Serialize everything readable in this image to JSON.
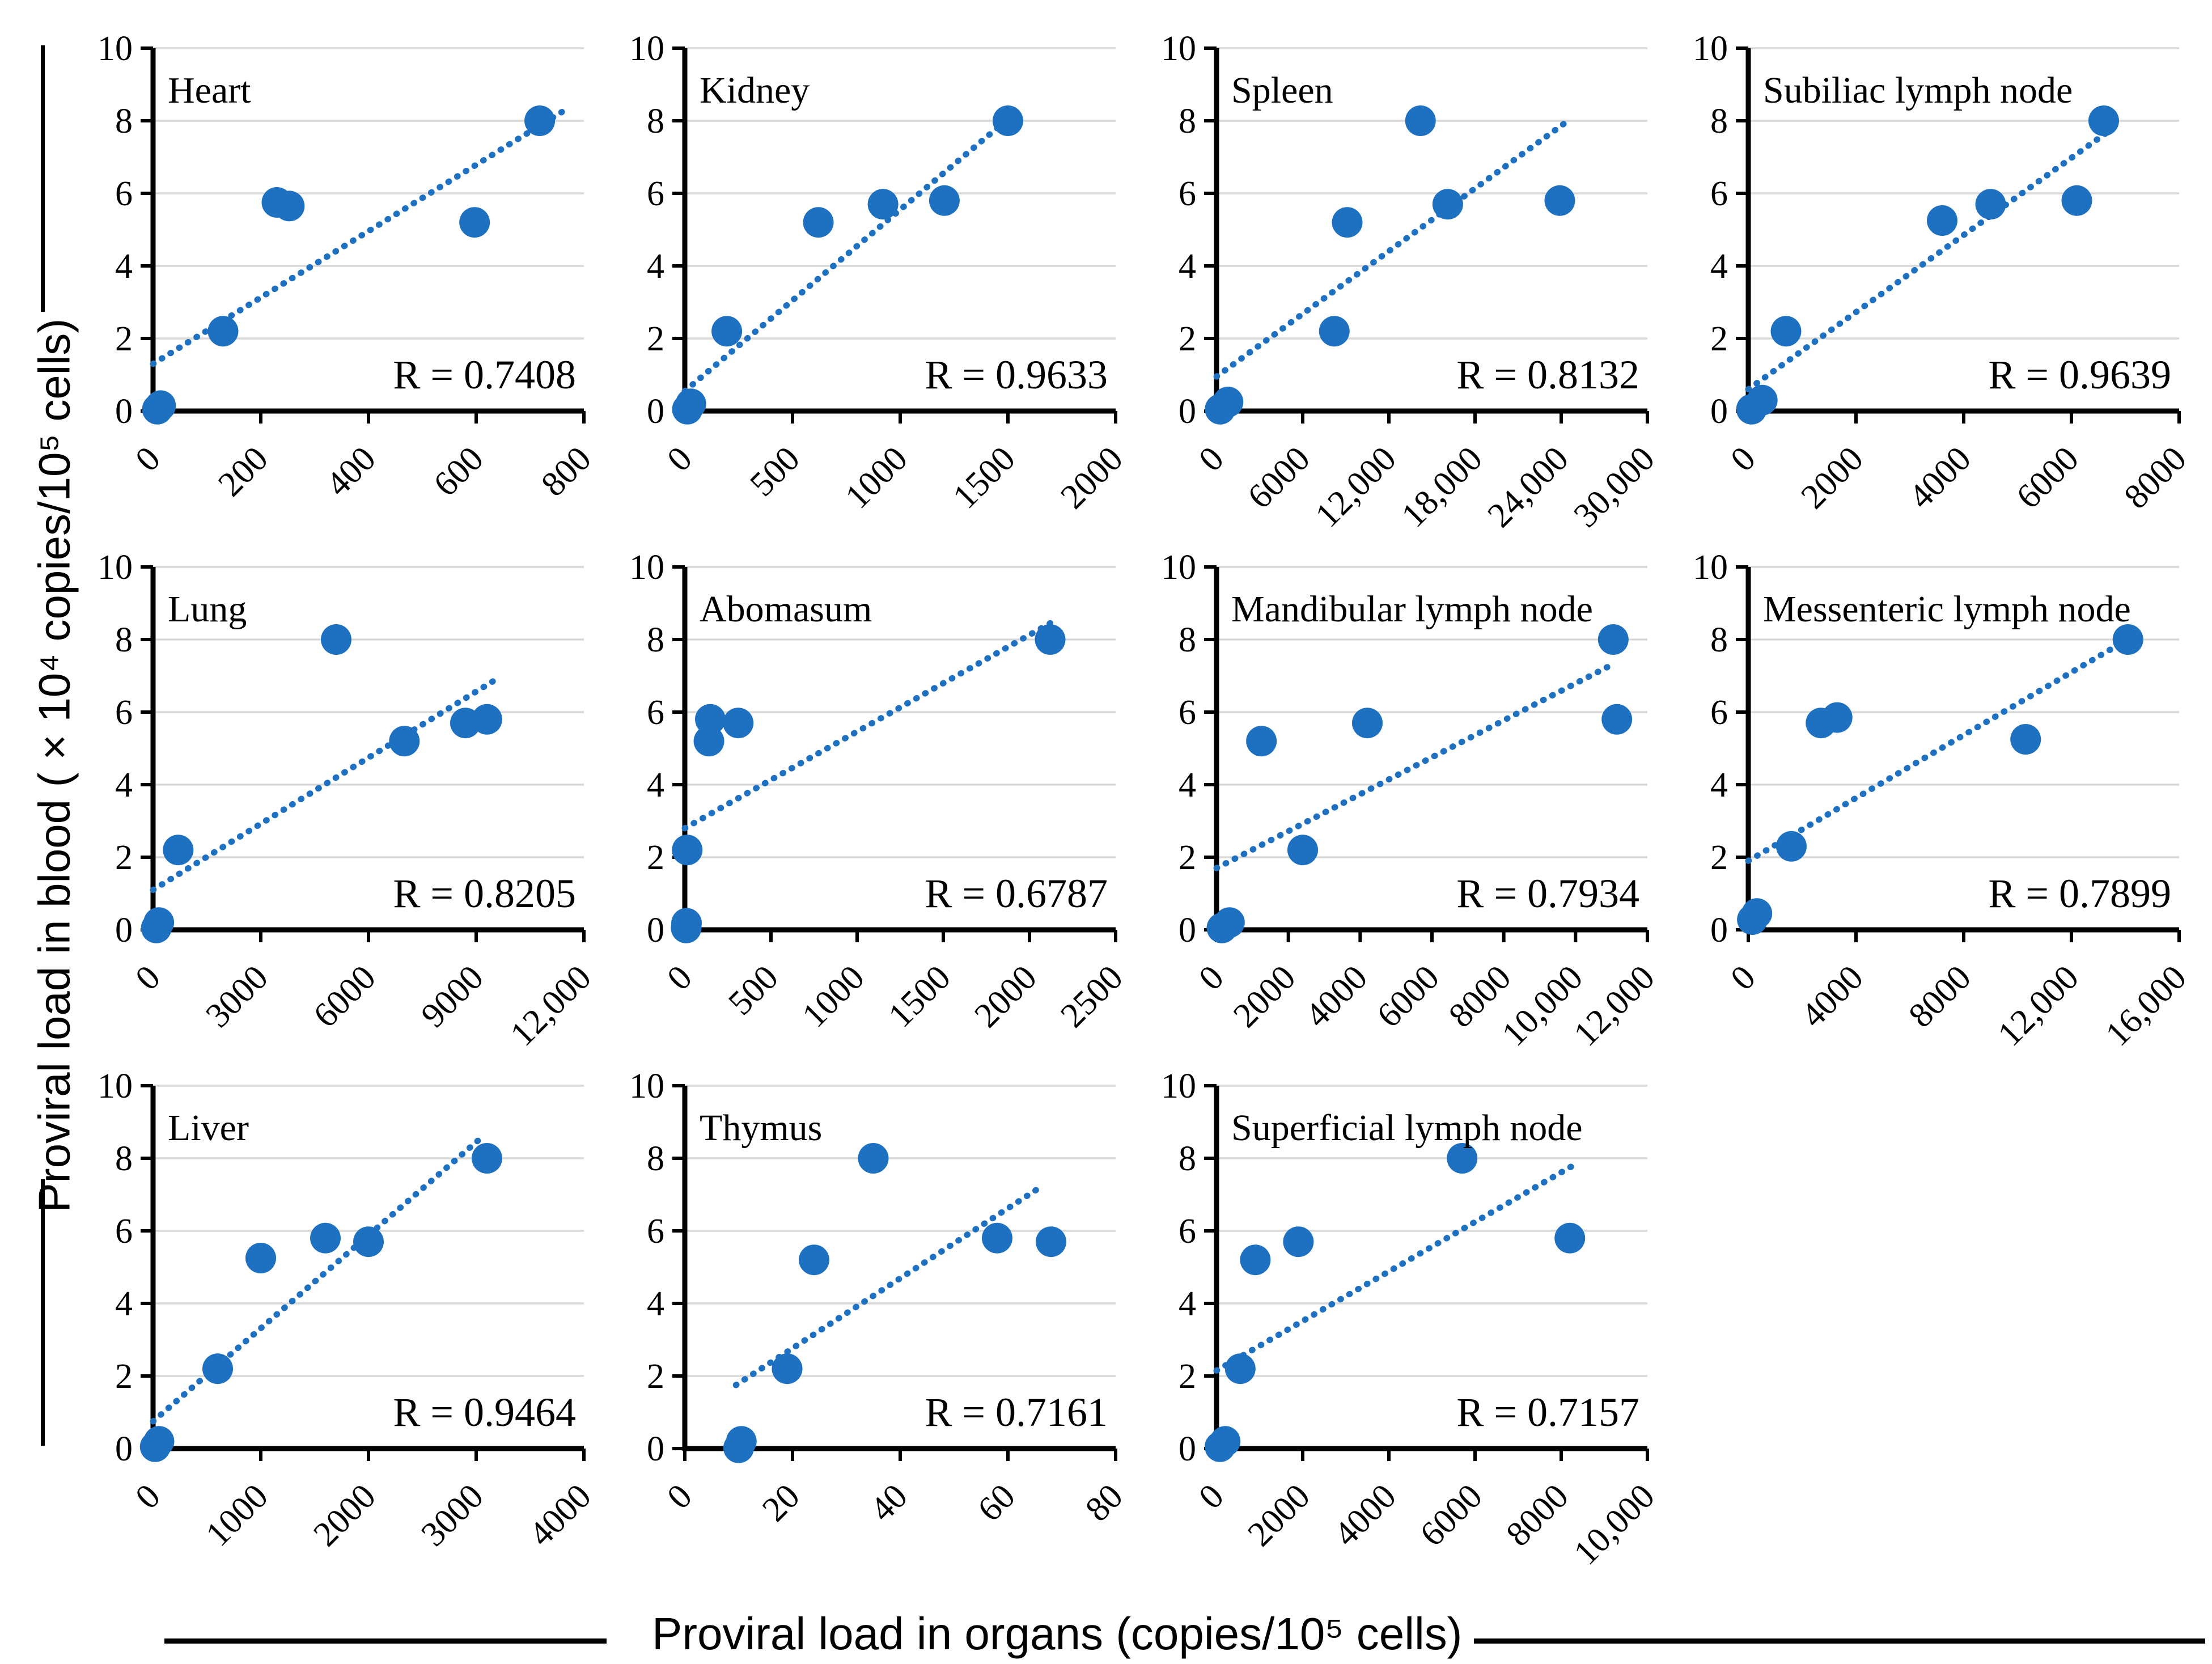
{
  "figure": {
    "y_axis_title": "Proviral load in blood ( × 10⁴ copies/10⁵ cells)",
    "x_axis_title": "Proviral load in organs (copies/10⁵ cells)",
    "point_color": "#1E70C1",
    "grid_color": "#D9D9D9",
    "axis_color": "#000000",
    "y_max": 10,
    "y_ticks": [
      0,
      2,
      4,
      6,
      8,
      10
    ],
    "grid_on": true,
    "legend_position": "none"
  },
  "chart_data": [
    {
      "type": "scatter",
      "title": "Heart",
      "r": 0.7408,
      "xlabel": "",
      "ylabel": "",
      "ylim": [
        0,
        10
      ],
      "x_max": 800,
      "x_tick_values": [
        0,
        200,
        400,
        600,
        800
      ],
      "x_tick_labels": [
        "0",
        "200",
        "400",
        "600",
        "800"
      ],
      "points": [
        [
          8,
          0.05
        ],
        [
          14,
          0.15
        ],
        [
          130,
          2.2
        ],
        [
          230,
          5.75
        ],
        [
          253,
          5.65
        ],
        [
          597,
          5.2
        ],
        [
          718,
          8.0
        ]
      ],
      "trend": [
        0,
        1.3,
        760,
        8.25
      ]
    },
    {
      "type": "scatter",
      "title": "Kidney",
      "r": 0.9633,
      "xlabel": "",
      "ylabel": "",
      "ylim": [
        0,
        10
      ],
      "x_max": 2000,
      "x_tick_values": [
        0,
        500,
        1000,
        1500,
        2000
      ],
      "x_tick_labels": [
        "0",
        "500",
        "1000",
        "1500",
        "2000"
      ],
      "points": [
        [
          12,
          0.05
        ],
        [
          28,
          0.2
        ],
        [
          195,
          2.2
        ],
        [
          620,
          5.2
        ],
        [
          920,
          5.7
        ],
        [
          1205,
          5.8
        ],
        [
          1500,
          8.0
        ]
      ],
      "trend": [
        0,
        0.55,
        1530,
        8.2
      ]
    },
    {
      "type": "scatter",
      "title": "Spleen",
      "r": 0.8132,
      "xlabel": "",
      "ylabel": "",
      "ylim": [
        0,
        10
      ],
      "x_max": 30000,
      "x_tick_values": [
        0,
        6000,
        12000,
        18000,
        24000,
        30000
      ],
      "x_tick_labels": [
        "0",
        "6000",
        "12,000",
        "18,000",
        "24,000",
        "30,000"
      ],
      "points": [
        [
          250,
          0.05
        ],
        [
          800,
          0.25
        ],
        [
          8200,
          2.2
        ],
        [
          9100,
          5.2
        ],
        [
          14200,
          8.0
        ],
        [
          16100,
          5.7
        ],
        [
          23900,
          5.8
        ]
      ],
      "trend": [
        0,
        0.95,
        24300,
        7.95
      ]
    },
    {
      "type": "scatter",
      "title": "Subiliac lymph node",
      "r": 0.9639,
      "xlabel": "",
      "ylabel": "",
      "ylim": [
        0,
        10
      ],
      "x_max": 8000,
      "x_tick_values": [
        0,
        2000,
        4000,
        6000,
        8000
      ],
      "x_tick_labels": [
        "0",
        "2000",
        "4000",
        "6000",
        "8000"
      ],
      "points": [
        [
          60,
          0.05
        ],
        [
          260,
          0.3
        ],
        [
          700,
          2.2
        ],
        [
          3600,
          5.25
        ],
        [
          4500,
          5.7
        ],
        [
          6100,
          5.8
        ],
        [
          6600,
          8.0
        ]
      ],
      "trend": [
        0,
        0.6,
        6680,
        7.7
      ]
    },
    {
      "type": "scatter",
      "title": "Lung",
      "r": 0.8205,
      "xlabel": "",
      "ylabel": "",
      "ylim": [
        0,
        10
      ],
      "x_max": 12000,
      "x_tick_values": [
        0,
        3000,
        6000,
        9000,
        12000
      ],
      "x_tick_labels": [
        "0",
        "3000",
        "6000",
        "9000",
        "12,000"
      ],
      "points": [
        [
          90,
          0.05
        ],
        [
          160,
          0.2
        ],
        [
          700,
          2.2
        ],
        [
          5100,
          8.0
        ],
        [
          7000,
          5.2
        ],
        [
          8700,
          5.7
        ],
        [
          9300,
          5.8
        ]
      ],
      "trend": [
        0,
        1.1,
        9550,
        6.9
      ]
    },
    {
      "type": "scatter",
      "title": "Abomasum",
      "r": 0.6787,
      "xlabel": "",
      "ylabel": "",
      "ylim": [
        0,
        10
      ],
      "x_max": 2500,
      "x_tick_values": [
        0,
        500,
        1000,
        1500,
        2000,
        2500
      ],
      "x_tick_labels": [
        "0",
        "500",
        "1000",
        "1500",
        "2000",
        "2500"
      ],
      "points": [
        [
          8,
          0.05
        ],
        [
          10,
          0.18
        ],
        [
          14,
          2.2
        ],
        [
          140,
          5.2
        ],
        [
          148,
          5.8
        ],
        [
          310,
          5.7
        ],
        [
          2120,
          8.0
        ]
      ],
      "trend": [
        0,
        2.8,
        2140,
        8.5
      ]
    },
    {
      "type": "scatter",
      "title": "Mandibular lymph node",
      "r": 0.7934,
      "xlabel": "",
      "ylabel": "",
      "ylim": [
        0,
        10
      ],
      "x_max": 12000,
      "x_tick_values": [
        0,
        2000,
        4000,
        6000,
        8000,
        10000,
        12000
      ],
      "x_tick_labels": [
        "0",
        "2000",
        "4000",
        "6000",
        "8000",
        "10,000",
        "12,000"
      ],
      "points": [
        [
          150,
          0.05
        ],
        [
          360,
          0.2
        ],
        [
          1250,
          5.2
        ],
        [
          2400,
          2.2
        ],
        [
          4200,
          5.7
        ],
        [
          11050,
          8.0
        ],
        [
          11150,
          5.8
        ]
      ],
      "trend": [
        0,
        1.7,
        11100,
        7.35
      ]
    },
    {
      "type": "scatter",
      "title": "Messenteric lymph node",
      "r": 0.7899,
      "xlabel": "",
      "ylabel": "",
      "ylim": [
        0,
        10
      ],
      "x_max": 16000,
      "x_tick_values": [
        0,
        4000,
        8000,
        12000,
        16000
      ],
      "x_tick_labels": [
        "0",
        "4000",
        "8000",
        "12,000",
        "16,000"
      ],
      "points": [
        [
          150,
          0.28
        ],
        [
          320,
          0.45
        ],
        [
          1600,
          2.3
        ],
        [
          2700,
          5.7
        ],
        [
          3300,
          5.85
        ],
        [
          10300,
          5.25
        ],
        [
          14100,
          8.0
        ]
      ],
      "trend": [
        0,
        1.9,
        14200,
        8.05
      ]
    },
    {
      "type": "scatter",
      "title": "Liver",
      "r": 0.9464,
      "xlabel": "",
      "ylabel": "",
      "ylim": [
        0,
        10
      ],
      "x_max": 4000,
      "x_tick_values": [
        0,
        1000,
        2000,
        3000,
        4000
      ],
      "x_tick_labels": [
        "0",
        "1000",
        "2000",
        "3000",
        "4000"
      ],
      "points": [
        [
          20,
          0.05
        ],
        [
          55,
          0.2
        ],
        [
          600,
          2.2
        ],
        [
          1000,
          5.25
        ],
        [
          1600,
          5.8
        ],
        [
          2000,
          5.7
        ],
        [
          3100,
          8.0
        ]
      ],
      "trend": [
        0,
        0.75,
        3080,
        8.65
      ]
    },
    {
      "type": "scatter",
      "title": "Thymus",
      "r": 0.7161,
      "xlabel": "",
      "ylabel": "",
      "ylim": [
        0,
        10
      ],
      "x_max": 80,
      "x_tick_values": [
        0,
        20,
        40,
        60,
        80
      ],
      "x_tick_labels": [
        "0",
        "20",
        "40",
        "60",
        "80"
      ],
      "points": [
        [
          10,
          0.02
        ],
        [
          10.5,
          0.2
        ],
        [
          19,
          2.2
        ],
        [
          24,
          5.2
        ],
        [
          35,
          8.0
        ],
        [
          58,
          5.8
        ],
        [
          68,
          5.7
        ]
      ],
      "trend": [
        9.5,
        1.75,
        66,
        7.2
      ]
    },
    {
      "type": "scatter",
      "title": "Superficial lymph node",
      "r": 0.7157,
      "xlabel": "",
      "ylabel": "",
      "ylim": [
        0,
        10
      ],
      "x_max": 10000,
      "x_tick_values": [
        0,
        2000,
        4000,
        6000,
        8000,
        10000
      ],
      "x_tick_labels": [
        "0",
        "2000",
        "4000",
        "6000",
        "8000",
        "10,000"
      ],
      "points": [
        [
          80,
          0.05
        ],
        [
          200,
          0.2
        ],
        [
          550,
          2.2
        ],
        [
          900,
          5.2
        ],
        [
          1900,
          5.7
        ],
        [
          5700,
          8.0
        ],
        [
          8200,
          5.8
        ]
      ],
      "trend": [
        0,
        2.15,
        8350,
        7.85
      ]
    }
  ]
}
